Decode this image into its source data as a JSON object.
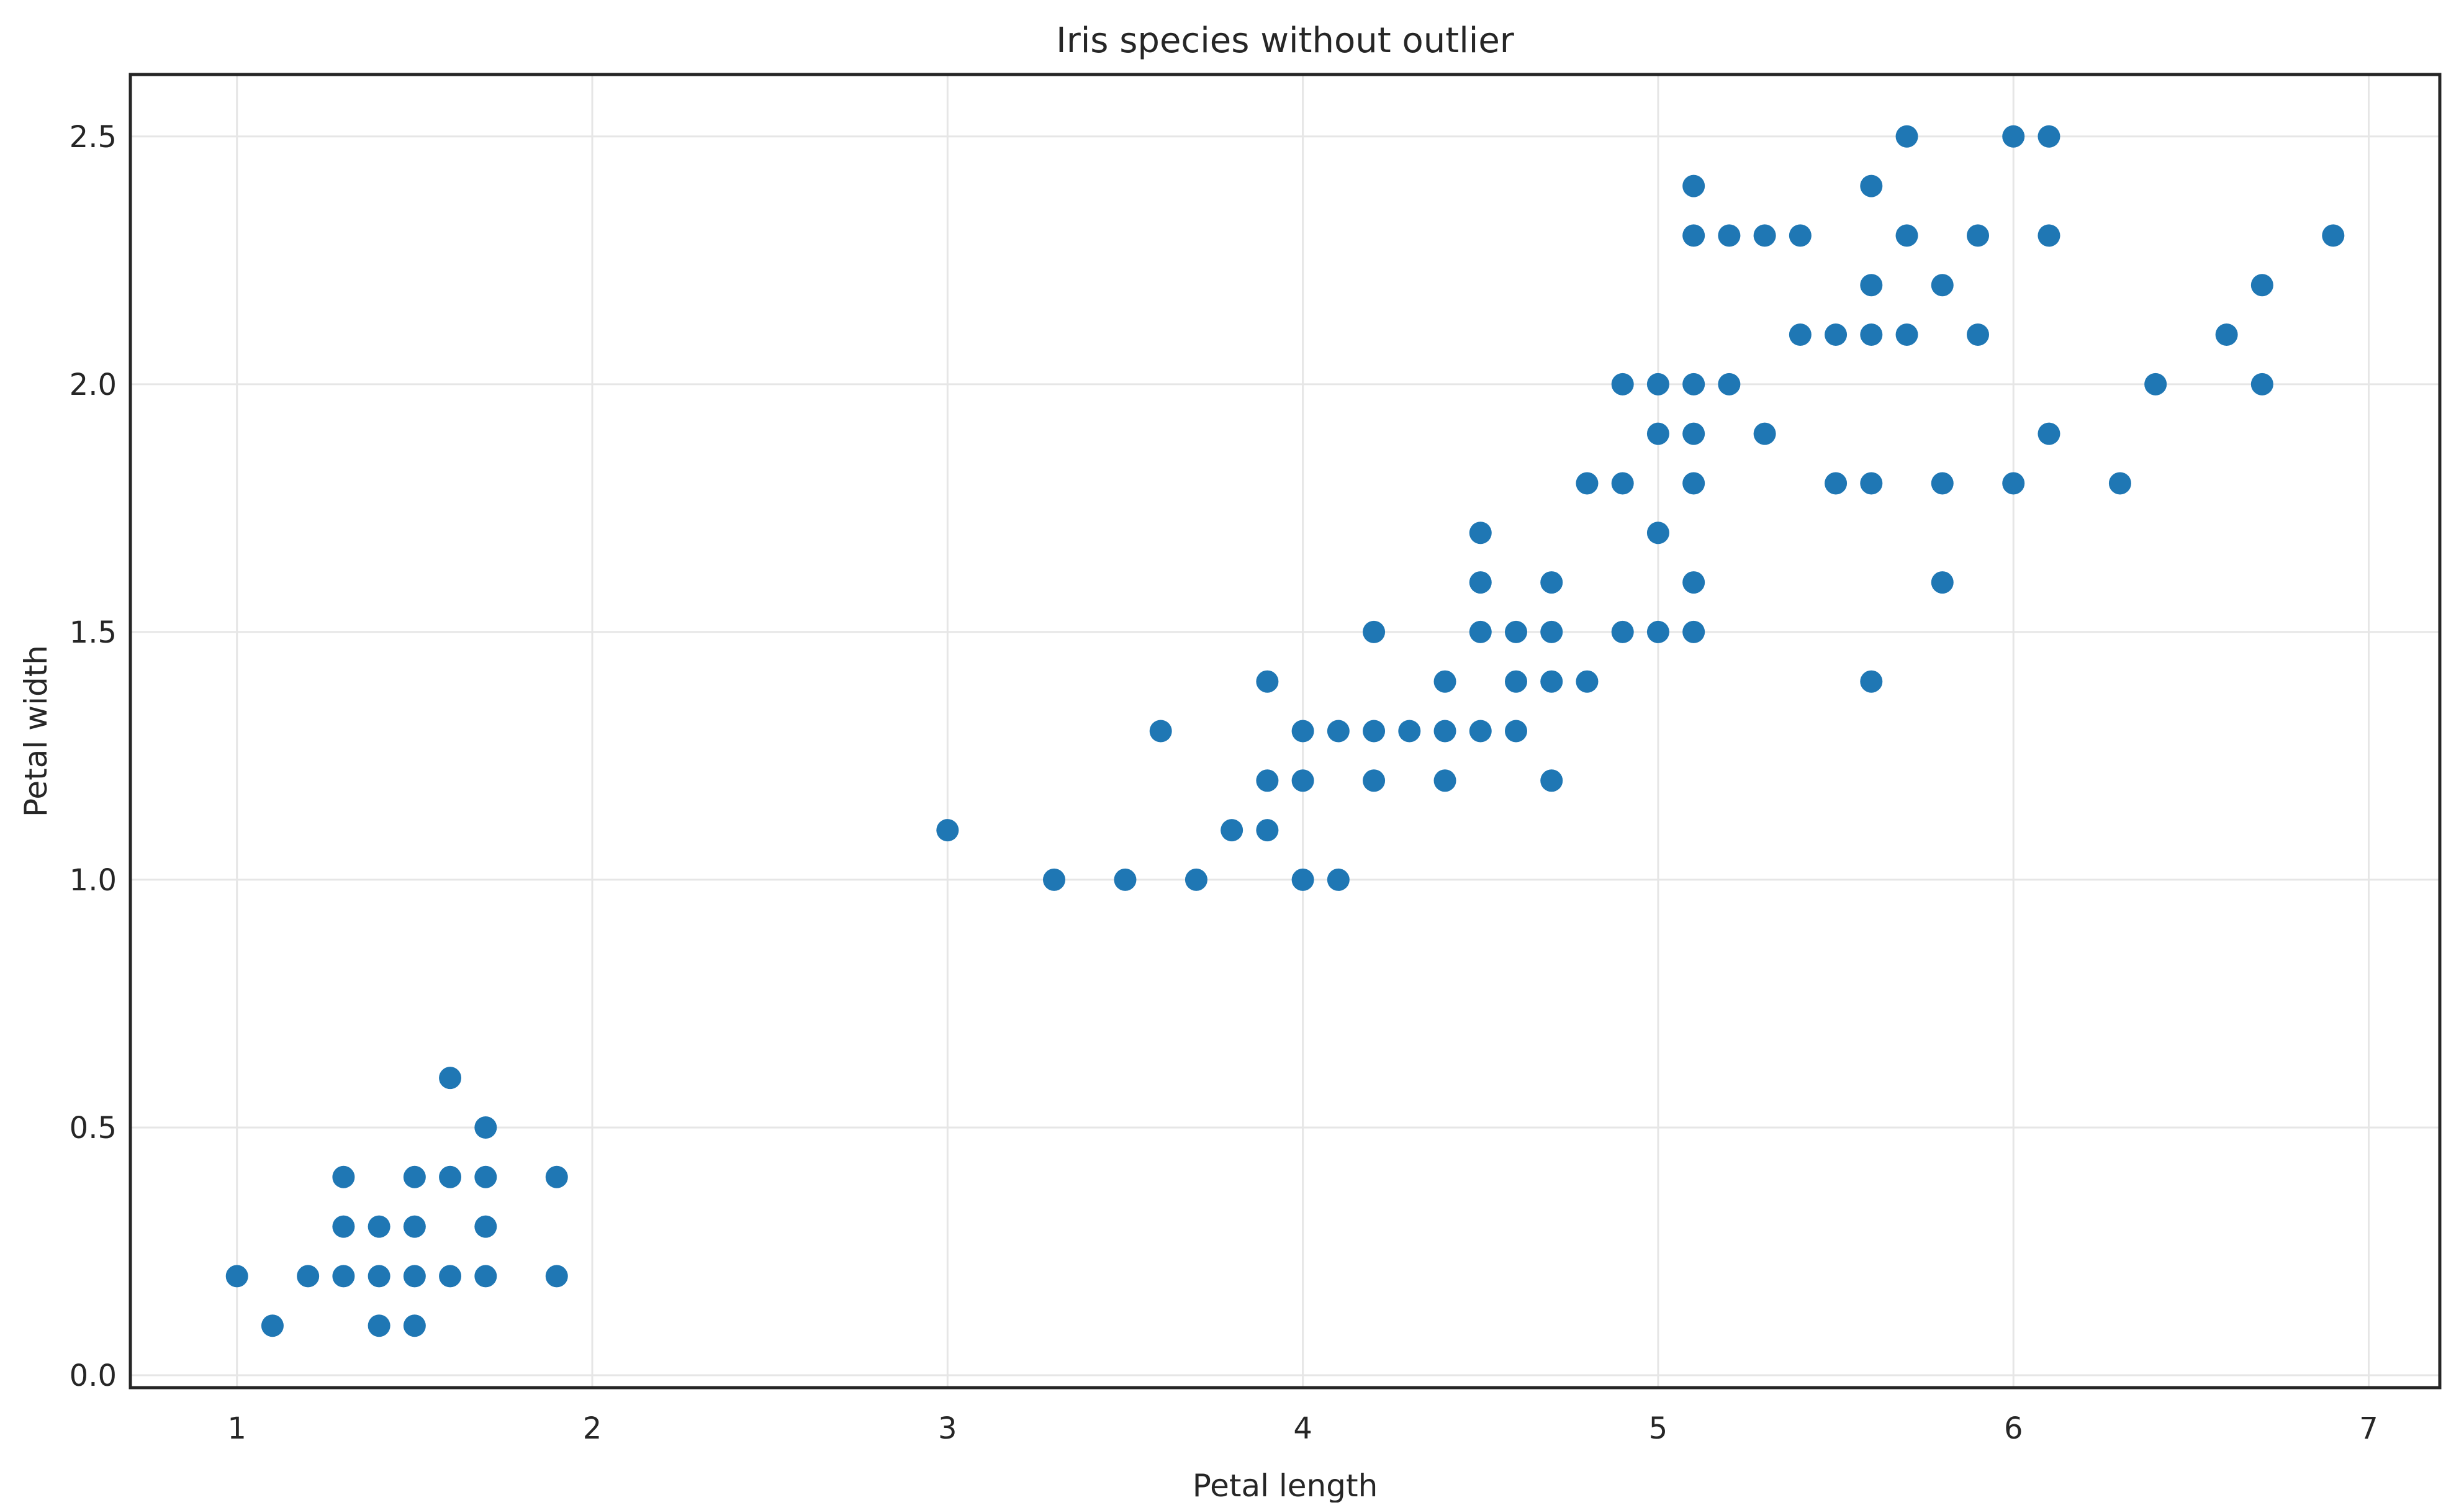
{
  "chart_data": {
    "type": "scatter",
    "title": "Iris species without outlier",
    "xlabel": "Petal length",
    "ylabel": "Petal width",
    "xlim": [
      0.7,
      7.2
    ],
    "ylim": [
      -0.025,
      2.625
    ],
    "xticks": [
      1,
      2,
      3,
      4,
      5,
      6,
      7
    ],
    "xtick_labels": [
      "1",
      "2",
      "3",
      "4",
      "5",
      "6",
      "7"
    ],
    "yticks": [
      0.0,
      0.5,
      1.0,
      1.5,
      2.0,
      2.5
    ],
    "ytick_labels": [
      "0.0",
      "0.5",
      "1.0",
      "1.5",
      "2.0",
      "2.5"
    ],
    "grid": true,
    "marker_color": "#1f77b4",
    "points": [
      {
        "x": 1.0,
        "y": 0.2
      },
      {
        "x": 1.1,
        "y": 0.1
      },
      {
        "x": 1.2,
        "y": 0.2
      },
      {
        "x": 1.3,
        "y": 0.2
      },
      {
        "x": 1.3,
        "y": 0.3
      },
      {
        "x": 1.3,
        "y": 0.4
      },
      {
        "x": 1.4,
        "y": 0.1
      },
      {
        "x": 1.4,
        "y": 0.2
      },
      {
        "x": 1.4,
        "y": 0.3
      },
      {
        "x": 1.5,
        "y": 0.1
      },
      {
        "x": 1.5,
        "y": 0.2
      },
      {
        "x": 1.5,
        "y": 0.3
      },
      {
        "x": 1.5,
        "y": 0.4
      },
      {
        "x": 1.6,
        "y": 0.2
      },
      {
        "x": 1.6,
        "y": 0.4
      },
      {
        "x": 1.6,
        "y": 0.6
      },
      {
        "x": 1.7,
        "y": 0.2
      },
      {
        "x": 1.7,
        "y": 0.3
      },
      {
        "x": 1.7,
        "y": 0.4
      },
      {
        "x": 1.7,
        "y": 0.5
      },
      {
        "x": 1.9,
        "y": 0.2
      },
      {
        "x": 1.9,
        "y": 0.4
      },
      {
        "x": 3.0,
        "y": 1.1
      },
      {
        "x": 3.3,
        "y": 1.0
      },
      {
        "x": 3.5,
        "y": 1.0
      },
      {
        "x": 3.6,
        "y": 1.3
      },
      {
        "x": 3.7,
        "y": 1.0
      },
      {
        "x": 3.8,
        "y": 1.1
      },
      {
        "x": 3.9,
        "y": 1.1
      },
      {
        "x": 3.9,
        "y": 1.2
      },
      {
        "x": 3.9,
        "y": 1.4
      },
      {
        "x": 4.0,
        "y": 1.0
      },
      {
        "x": 4.0,
        "y": 1.2
      },
      {
        "x": 4.0,
        "y": 1.3
      },
      {
        "x": 4.1,
        "y": 1.0
      },
      {
        "x": 4.1,
        "y": 1.3
      },
      {
        "x": 4.2,
        "y": 1.2
      },
      {
        "x": 4.2,
        "y": 1.3
      },
      {
        "x": 4.2,
        "y": 1.5
      },
      {
        "x": 4.3,
        "y": 1.3
      },
      {
        "x": 4.4,
        "y": 1.2
      },
      {
        "x": 4.4,
        "y": 1.3
      },
      {
        "x": 4.4,
        "y": 1.4
      },
      {
        "x": 4.5,
        "y": 1.3
      },
      {
        "x": 4.5,
        "y": 1.5
      },
      {
        "x": 4.5,
        "y": 1.6
      },
      {
        "x": 4.5,
        "y": 1.7
      },
      {
        "x": 4.6,
        "y": 1.3
      },
      {
        "x": 4.6,
        "y": 1.4
      },
      {
        "x": 4.6,
        "y": 1.5
      },
      {
        "x": 4.7,
        "y": 1.2
      },
      {
        "x": 4.7,
        "y": 1.4
      },
      {
        "x": 4.7,
        "y": 1.5
      },
      {
        "x": 4.7,
        "y": 1.6
      },
      {
        "x": 4.8,
        "y": 1.4
      },
      {
        "x": 4.8,
        "y": 1.8
      },
      {
        "x": 4.9,
        "y": 1.5
      },
      {
        "x": 4.9,
        "y": 1.8
      },
      {
        "x": 4.9,
        "y": 2.0
      },
      {
        "x": 5.0,
        "y": 1.5
      },
      {
        "x": 5.0,
        "y": 1.7
      },
      {
        "x": 5.0,
        "y": 1.9
      },
      {
        "x": 5.0,
        "y": 2.0
      },
      {
        "x": 5.1,
        "y": 1.5
      },
      {
        "x": 5.1,
        "y": 1.6
      },
      {
        "x": 5.1,
        "y": 1.8
      },
      {
        "x": 5.1,
        "y": 1.9
      },
      {
        "x": 5.1,
        "y": 2.0
      },
      {
        "x": 5.1,
        "y": 2.3
      },
      {
        "x": 5.1,
        "y": 2.4
      },
      {
        "x": 5.2,
        "y": 2.0
      },
      {
        "x": 5.2,
        "y": 2.3
      },
      {
        "x": 5.3,
        "y": 1.9
      },
      {
        "x": 5.3,
        "y": 2.3
      },
      {
        "x": 5.4,
        "y": 2.1
      },
      {
        "x": 5.4,
        "y": 2.3
      },
      {
        "x": 5.5,
        "y": 1.8
      },
      {
        "x": 5.5,
        "y": 2.1
      },
      {
        "x": 5.6,
        "y": 1.4
      },
      {
        "x": 5.6,
        "y": 1.8
      },
      {
        "x": 5.6,
        "y": 2.1
      },
      {
        "x": 5.6,
        "y": 2.2
      },
      {
        "x": 5.6,
        "y": 2.4
      },
      {
        "x": 5.7,
        "y": 2.1
      },
      {
        "x": 5.7,
        "y": 2.3
      },
      {
        "x": 5.7,
        "y": 2.5
      },
      {
        "x": 5.8,
        "y": 1.6
      },
      {
        "x": 5.8,
        "y": 1.8
      },
      {
        "x": 5.8,
        "y": 2.2
      },
      {
        "x": 5.9,
        "y": 2.1
      },
      {
        "x": 5.9,
        "y": 2.3
      },
      {
        "x": 6.0,
        "y": 1.8
      },
      {
        "x": 6.0,
        "y": 2.5
      },
      {
        "x": 6.1,
        "y": 1.9
      },
      {
        "x": 6.1,
        "y": 2.3
      },
      {
        "x": 6.1,
        "y": 2.5
      },
      {
        "x": 6.3,
        "y": 1.8
      },
      {
        "x": 6.4,
        "y": 2.0
      },
      {
        "x": 6.6,
        "y": 2.1
      },
      {
        "x": 6.7,
        "y": 2.0
      },
      {
        "x": 6.7,
        "y": 2.2
      },
      {
        "x": 6.9,
        "y": 2.3
      }
    ]
  }
}
